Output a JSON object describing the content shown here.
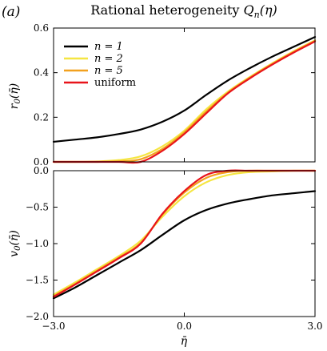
{
  "panel_tag": "(a)",
  "title": "Rational heterogeneity Q_n(η)",
  "title_parts": {
    "main": "Rational heterogeneity ",
    "symbol": "Q",
    "sub": "n",
    "arg": "(η)"
  },
  "colors": {
    "n1": "#000000",
    "n2": "#f5e642",
    "n5": "#f2a11f",
    "uniform": "#e8141b"
  },
  "chart_data": [
    {
      "type": "line",
      "title": "Rational heterogeneity Q_n(η)",
      "ylabel": "r_0(η̄)",
      "xlabel": "",
      "xlim": [
        -3.0,
        3.0
      ],
      "ylim": [
        0.0,
        0.6
      ],
      "yticks": [
        "0.0",
        "0.2",
        "0.4",
        "0.6"
      ],
      "legend": {
        "placement": "top-left",
        "entries": [
          "n = 1",
          "n = 2",
          "n = 5",
          "uniform"
        ]
      },
      "grid": false,
      "x": [
        -3.0,
        -2.5,
        -2.0,
        -1.5,
        -1.0,
        -0.5,
        0.0,
        0.5,
        1.0,
        1.5,
        2.0,
        2.5,
        3.0
      ],
      "series": [
        {
          "name": "n = 1",
          "color": "#000000",
          "values": [
            0.09,
            0.1,
            0.11,
            0.125,
            0.145,
            0.18,
            0.23,
            0.3,
            0.365,
            0.42,
            0.47,
            0.515,
            0.56
          ]
        },
        {
          "name": "n = 2",
          "color": "#f5e642",
          "values": [
            0.0,
            0.0,
            0.002,
            0.008,
            0.025,
            0.07,
            0.14,
            0.235,
            0.315,
            0.38,
            0.44,
            0.495,
            0.545
          ]
        },
        {
          "name": "n = 5",
          "color": "#f2a11f",
          "values": [
            0.0,
            0.0,
            0.0,
            0.002,
            0.012,
            0.058,
            0.132,
            0.225,
            0.31,
            0.377,
            0.437,
            0.492,
            0.543
          ]
        },
        {
          "name": "uniform",
          "color": "#e8141b",
          "values": [
            0.0,
            0.0,
            0.0,
            0.0,
            0.0,
            0.05,
            0.125,
            0.217,
            0.307,
            0.374,
            0.434,
            0.489,
            0.54
          ]
        }
      ]
    },
    {
      "type": "line",
      "ylabel": "v_0(η̄)",
      "xlabel": "η̄",
      "xlim": [
        -3.0,
        3.0
      ],
      "ylim": [
        -2.0,
        0.0
      ],
      "xticks": [
        "−3.0",
        "0.0",
        "3.0"
      ],
      "yticks": [
        "−2.0",
        "−1.5",
        "−1.0",
        "−0.5",
        "0.0"
      ],
      "grid": false,
      "x": [
        -3.0,
        -2.5,
        -2.0,
        -1.5,
        -1.0,
        -0.5,
        0.0,
        0.5,
        1.0,
        1.5,
        2.0,
        2.5,
        3.0
      ],
      "series": [
        {
          "name": "n = 1",
          "color": "#000000",
          "values": [
            -1.75,
            -1.6,
            -1.43,
            -1.26,
            -1.09,
            -0.88,
            -0.68,
            -0.54,
            -0.45,
            -0.39,
            -0.34,
            -0.31,
            -0.28
          ]
        },
        {
          "name": "n = 2",
          "color": "#f5e642",
          "values": [
            -1.7,
            -1.53,
            -1.35,
            -1.17,
            -0.96,
            -0.63,
            -0.35,
            -0.16,
            -0.06,
            -0.02,
            -0.01,
            0.0,
            0.0
          ]
        },
        {
          "name": "n = 5",
          "color": "#f2a11f",
          "values": [
            -1.72,
            -1.55,
            -1.37,
            -1.19,
            -0.99,
            -0.6,
            -0.3,
            -0.1,
            -0.02,
            0.0,
            0.0,
            0.0,
            0.0
          ]
        },
        {
          "name": "uniform",
          "color": "#e8141b",
          "values": [
            -1.73,
            -1.56,
            -1.38,
            -1.2,
            -1.0,
            -0.59,
            -0.28,
            -0.06,
            0.0,
            0.0,
            0.0,
            0.0,
            0.0
          ]
        }
      ]
    }
  ]
}
